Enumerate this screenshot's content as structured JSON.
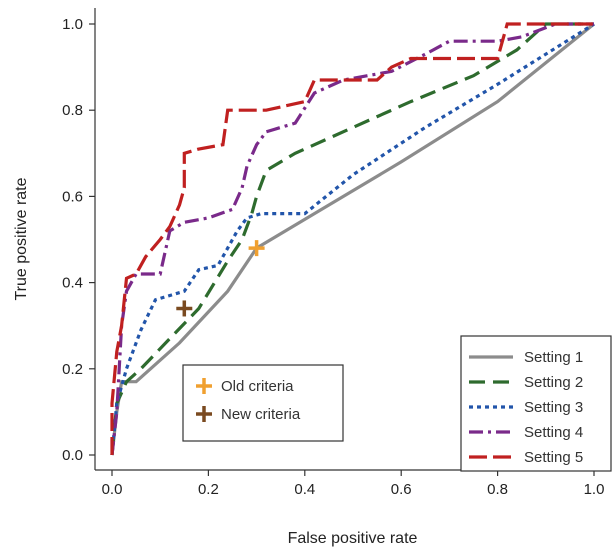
{
  "chart_data": {
    "type": "line",
    "title": "",
    "xlabel": "False positive rate",
    "ylabel": "True positive rate",
    "xlim": [
      0,
      1
    ],
    "ylim": [
      0,
      1
    ],
    "xticks": [
      "0.0",
      "0.2",
      "0.4",
      "0.6",
      "0.8",
      "1.0"
    ],
    "yticks": [
      "0.0",
      "0.2",
      "0.4",
      "0.6",
      "0.8",
      "1.0"
    ],
    "grid": false,
    "legend_position": "bottom-right",
    "series": [
      {
        "name": "Setting 1",
        "color": "#8c8c8c",
        "dash": "solid",
        "points": [
          [
            0,
            0
          ],
          [
            0.01,
            0.1
          ],
          [
            0.02,
            0.17
          ],
          [
            0.05,
            0.17
          ],
          [
            0.14,
            0.26
          ],
          [
            0.24,
            0.38
          ],
          [
            0.3,
            0.48
          ],
          [
            0.42,
            0.56
          ],
          [
            0.6,
            0.68
          ],
          [
            0.8,
            0.82
          ],
          [
            1.0,
            1.0
          ]
        ]
      },
      {
        "name": "Setting 2",
        "color": "#2e6b2e",
        "dash": "long-dash",
        "points": [
          [
            0,
            0
          ],
          [
            0.01,
            0.12
          ],
          [
            0.03,
            0.17
          ],
          [
            0.06,
            0.2
          ],
          [
            0.12,
            0.27
          ],
          [
            0.18,
            0.34
          ],
          [
            0.24,
            0.45
          ],
          [
            0.27,
            0.5
          ],
          [
            0.29,
            0.56
          ],
          [
            0.3,
            0.6
          ],
          [
            0.32,
            0.66
          ],
          [
            0.38,
            0.7
          ],
          [
            0.5,
            0.76
          ],
          [
            0.62,
            0.82
          ],
          [
            0.75,
            0.88
          ],
          [
            0.84,
            0.94
          ],
          [
            0.9,
            1.0
          ],
          [
            1.0,
            1.0
          ]
        ]
      },
      {
        "name": "Setting 3",
        "color": "#2255aa",
        "dash": "dotted",
        "points": [
          [
            0,
            0
          ],
          [
            0.01,
            0.12
          ],
          [
            0.03,
            0.2
          ],
          [
            0.06,
            0.29
          ],
          [
            0.09,
            0.36
          ],
          [
            0.15,
            0.38
          ],
          [
            0.18,
            0.43
          ],
          [
            0.22,
            0.44
          ],
          [
            0.26,
            0.52
          ],
          [
            0.28,
            0.55
          ],
          [
            0.31,
            0.56
          ],
          [
            0.36,
            0.56
          ],
          [
            0.4,
            0.56
          ],
          [
            0.5,
            0.65
          ],
          [
            0.65,
            0.76
          ],
          [
            0.8,
            0.86
          ],
          [
            1.0,
            1.0
          ]
        ]
      },
      {
        "name": "Setting 4",
        "color": "#7a2a8a",
        "dash": "dash-dot",
        "points": [
          [
            0,
            0
          ],
          [
            0.01,
            0.1
          ],
          [
            0.02,
            0.3
          ],
          [
            0.03,
            0.38
          ],
          [
            0.05,
            0.42
          ],
          [
            0.1,
            0.42
          ],
          [
            0.12,
            0.52
          ],
          [
            0.15,
            0.54
          ],
          [
            0.2,
            0.55
          ],
          [
            0.25,
            0.57
          ],
          [
            0.27,
            0.62
          ],
          [
            0.28,
            0.67
          ],
          [
            0.3,
            0.72
          ],
          [
            0.32,
            0.75
          ],
          [
            0.38,
            0.77
          ],
          [
            0.42,
            0.84
          ],
          [
            0.48,
            0.87
          ],
          [
            0.58,
            0.89
          ],
          [
            0.65,
            0.93
          ],
          [
            0.7,
            0.96
          ],
          [
            0.8,
            0.96
          ],
          [
            0.85,
            0.97
          ],
          [
            0.92,
            1.0
          ],
          [
            1.0,
            1.0
          ]
        ]
      },
      {
        "name": "Setting 5",
        "color": "#c02020",
        "dash": "dash",
        "points": [
          [
            0,
            0
          ],
          [
            0.0,
            0.12
          ],
          [
            0.01,
            0.24
          ],
          [
            0.02,
            0.3
          ],
          [
            0.03,
            0.41
          ],
          [
            0.05,
            0.42
          ],
          [
            0.07,
            0.46
          ],
          [
            0.1,
            0.5
          ],
          [
            0.12,
            0.53
          ],
          [
            0.14,
            0.58
          ],
          [
            0.15,
            0.62
          ],
          [
            0.15,
            0.7
          ],
          [
            0.18,
            0.71
          ],
          [
            0.23,
            0.72
          ],
          [
            0.24,
            0.8
          ],
          [
            0.32,
            0.8
          ],
          [
            0.4,
            0.82
          ],
          [
            0.42,
            0.87
          ],
          [
            0.55,
            0.87
          ],
          [
            0.58,
            0.9
          ],
          [
            0.62,
            0.92
          ],
          [
            0.8,
            0.92
          ],
          [
            0.82,
            1.0
          ],
          [
            1.0,
            1.0
          ]
        ]
      }
    ],
    "markers": [
      {
        "name": "Old criteria",
        "x": 0.3,
        "y": 0.48,
        "color": "#f0a030"
      },
      {
        "name": "New criteria",
        "x": 0.15,
        "y": 0.34,
        "color": "#7a4a20"
      }
    ]
  }
}
